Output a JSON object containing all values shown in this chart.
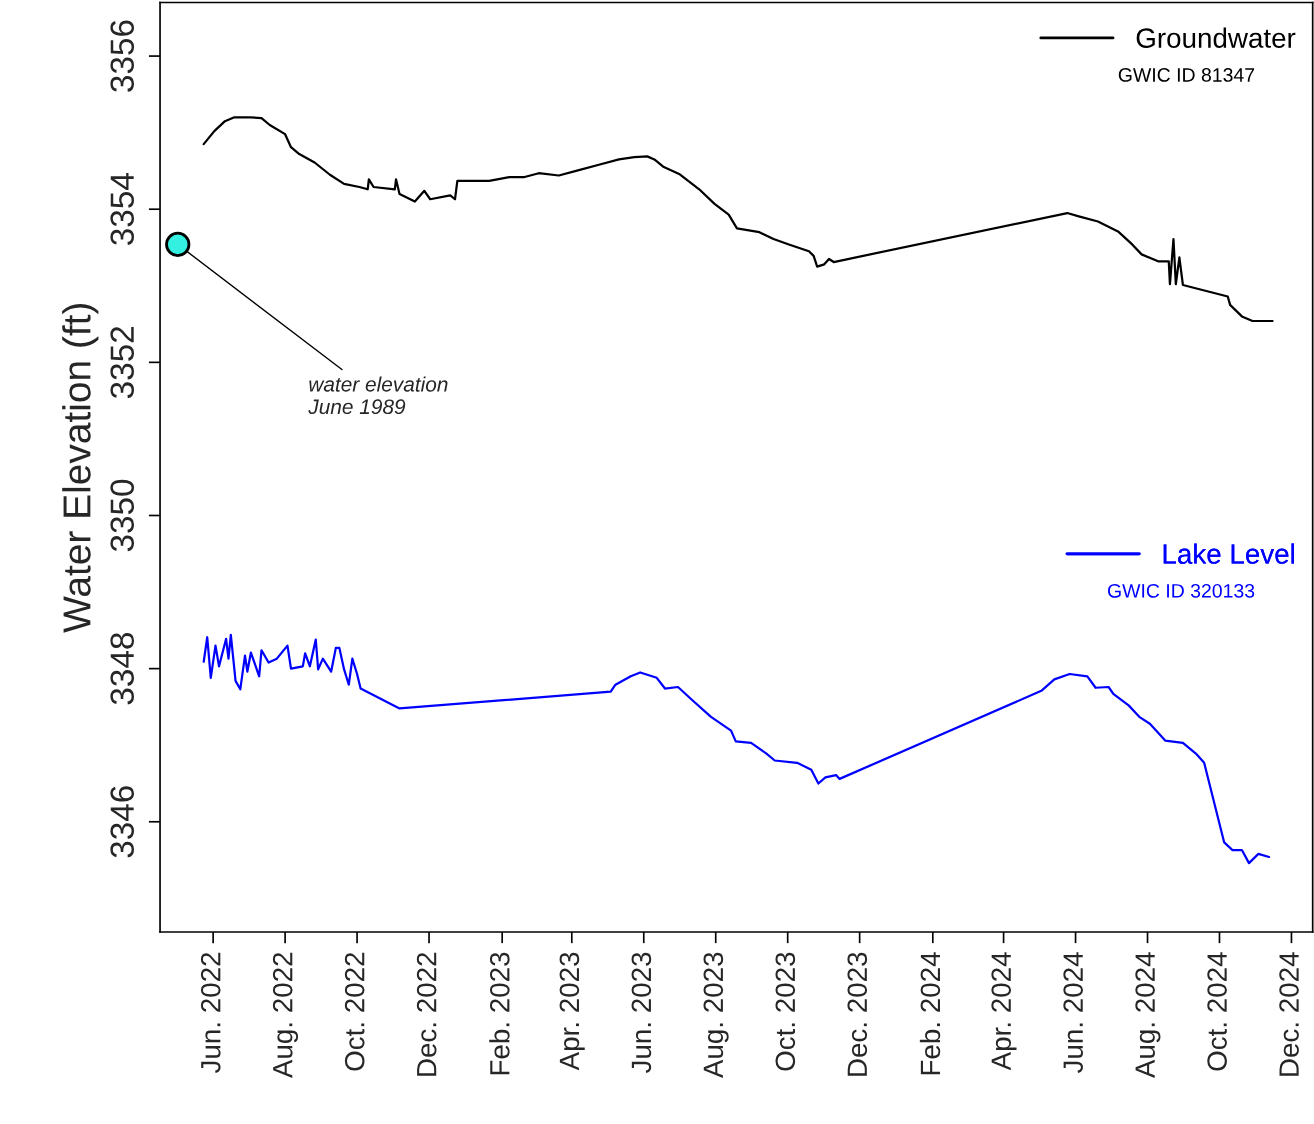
{
  "chart_data": {
    "type": "line",
    "ylabel": "Water Elevation (ft)",
    "xlim": [
      "2022-04-17",
      "2024-12-19"
    ],
    "ylim": [
      3344.56,
      3356.7
    ],
    "yticks": [
      3346,
      3348,
      3350,
      3352,
      3354,
      3356
    ],
    "xticks": [
      {
        "value": "2022-06-01",
        "label": "Jun. 2022"
      },
      {
        "value": "2022-08-01",
        "label": "Aug. 2022"
      },
      {
        "value": "2022-10-01",
        "label": "Oct. 2022"
      },
      {
        "value": "2022-12-01",
        "label": "Dec. 2022"
      },
      {
        "value": "2023-02-01",
        "label": "Feb. 2023"
      },
      {
        "value": "2023-04-01",
        "label": "Apr. 2023"
      },
      {
        "value": "2023-06-01",
        "label": "Jun. 2023"
      },
      {
        "value": "2023-08-01",
        "label": "Aug. 2023"
      },
      {
        "value": "2023-10-01",
        "label": "Oct. 2023"
      },
      {
        "value": "2023-12-01",
        "label": "Dec. 2023"
      },
      {
        "value": "2024-02-01",
        "label": "Feb. 2024"
      },
      {
        "value": "2024-04-01",
        "label": "Apr. 2024"
      },
      {
        "value": "2024-06-01",
        "label": "Jun. 2024"
      },
      {
        "value": "2024-08-01",
        "label": "Aug. 2024"
      },
      {
        "value": "2024-10-01",
        "label": "Oct. 2024"
      },
      {
        "value": "2024-12-01",
        "label": "Dec. 2024"
      }
    ],
    "grid": false,
    "legend": "right",
    "series": [
      {
        "name": "Groundwater",
        "color": "#000000",
        "x": [
          "2022-05-24",
          "2022-06-02",
          "2022-06-11",
          "2022-06-19",
          "2022-07-02",
          "2022-07-12",
          "2022-07-19",
          "2022-08-01",
          "2022-08-06",
          "2022-08-13",
          "2022-08-26",
          "2022-09-08",
          "2022-09-20",
          "2022-10-03",
          "2022-10-10",
          "2022-10-11",
          "2022-10-15",
          "2022-11-02",
          "2022-11-03",
          "2022-11-06",
          "2022-11-19",
          "2022-11-27",
          "2022-12-02",
          "2022-12-19",
          "2022-12-23",
          "2022-12-25",
          "2023-01-21",
          "2023-02-07",
          "2023-02-20",
          "2023-03-04",
          "2023-03-21",
          "2023-04-07",
          "2023-04-24",
          "2023-05-11",
          "2023-05-24",
          "2023-06-04",
          "2023-06-10",
          "2023-06-18",
          "2023-07-01",
          "2023-07-18",
          "2023-07-31",
          "2023-08-12",
          "2023-08-19",
          "2023-09-07",
          "2023-09-19",
          "2023-10-02",
          "2023-10-19",
          "2023-10-23",
          "2023-10-26",
          "2023-11-01",
          "2023-11-05",
          "2023-11-09",
          "2024-05-25",
          "2024-06-03",
          "2024-06-20",
          "2024-07-07",
          "2024-07-19",
          "2024-07-27",
          "2024-08-10",
          "2024-08-19",
          "2024-08-20",
          "2024-08-23",
          "2024-08-25",
          "2024-08-28",
          "2024-08-31",
          "2024-10-08",
          "2024-10-10",
          "2024-10-20",
          "2024-10-29",
          "2024-11-15"
        ],
        "values": [
          3354.85,
          3355.02,
          3355.15,
          3355.2,
          3355.2,
          3355.19,
          3355.1,
          3354.98,
          3354.81,
          3354.72,
          3354.61,
          3354.45,
          3354.33,
          3354.29,
          3354.26,
          3354.39,
          3354.29,
          3354.26,
          3354.39,
          3354.2,
          3354.1,
          3354.24,
          3354.13,
          3354.18,
          3354.13,
          3354.37,
          3354.37,
          3354.42,
          3354.42,
          3354.47,
          3354.44,
          3354.51,
          3354.58,
          3354.65,
          3354.68,
          3354.69,
          3354.65,
          3354.55,
          3354.46,
          3354.26,
          3354.07,
          3353.93,
          3353.75,
          3353.7,
          3353.61,
          3353.54,
          3353.45,
          3353.39,
          3353.25,
          3353.28,
          3353.35,
          3353.31,
          3353.95,
          3353.91,
          3353.84,
          3353.71,
          3353.54,
          3353.41,
          3353.32,
          3353.32,
          3353.02,
          3353.61,
          3353.02,
          3353.37,
          3353.01,
          3352.86,
          3352.75,
          3352.6,
          3352.54,
          3352.54
        ]
      },
      {
        "name": "Lake Level",
        "color": "#0000ff",
        "x": [
          "2022-05-24",
          "2022-05-27",
          "2022-05-30",
          "2022-06-03",
          "2022-06-06",
          "2022-06-12",
          "2022-06-14",
          "2022-06-16",
          "2022-06-20",
          "2022-06-24",
          "2022-06-28",
          "2022-06-30",
          "2022-07-03",
          "2022-07-10",
          "2022-07-12",
          "2022-07-18",
          "2022-07-25",
          "2022-08-03",
          "2022-08-06",
          "2022-08-16",
          "2022-08-18",
          "2022-08-22",
          "2022-08-27",
          "2022-08-29",
          "2022-09-02",
          "2022-09-09",
          "2022-09-13",
          "2022-09-16",
          "2022-09-20",
          "2022-09-24",
          "2022-09-27",
          "2022-10-01",
          "2022-10-04",
          "2022-11-06",
          "2023-05-04",
          "2023-05-08",
          "2023-05-21",
          "2023-05-29",
          "2023-06-12",
          "2023-06-19",
          "2023-06-30",
          "2023-07-12",
          "2023-07-28",
          "2023-08-14",
          "2023-08-18",
          "2023-08-31",
          "2023-09-13",
          "2023-09-20",
          "2023-10-09",
          "2023-10-21",
          "2023-10-27",
          "2023-11-02",
          "2023-11-11",
          "2023-11-14",
          "2024-05-03",
          "2024-05-14",
          "2024-05-27",
          "2024-06-11",
          "2024-06-18",
          "2024-06-29",
          "2024-07-03",
          "2024-07-16",
          "2024-07-25",
          "2024-08-03",
          "2024-08-16",
          "2024-08-31",
          "2024-09-11",
          "2024-09-18",
          "2024-10-05",
          "2024-10-12",
          "2024-10-20",
          "2024-10-26",
          "2024-11-03",
          "2024-11-12"
        ],
        "values": [
          3348.09,
          3348.41,
          3347.88,
          3348.3,
          3348.03,
          3348.39,
          3348.13,
          3348.44,
          3347.84,
          3347.73,
          3348.17,
          3347.96,
          3348.21,
          3347.9,
          3348.24,
          3348.08,
          3348.13,
          3348.3,
          3348.0,
          3348.03,
          3348.2,
          3348.03,
          3348.38,
          3347.99,
          3348.13,
          3347.96,
          3348.27,
          3348.27,
          3347.99,
          3347.79,
          3348.13,
          3347.93,
          3347.74,
          3347.48,
          3347.7,
          3347.79,
          3347.9,
          3347.95,
          3347.88,
          3347.74,
          3347.76,
          3347.59,
          3347.37,
          3347.19,
          3347.05,
          3347.03,
          3346.89,
          3346.8,
          3346.77,
          3346.68,
          3346.5,
          3346.58,
          3346.61,
          3346.56,
          3347.71,
          3347.86,
          3347.93,
          3347.9,
          3347.75,
          3347.76,
          3347.67,
          3347.52,
          3347.37,
          3347.28,
          3347.06,
          3347.03,
          3346.89,
          3346.77,
          3345.73,
          3345.63,
          3345.63,
          3345.46,
          3345.58,
          3345.54
        ]
      },
      {
        "type": "scatter",
        "color": "#33f0e0",
        "marker": "circle",
        "x": [
          "2022-05-02"
        ],
        "values": [
          3353.54
        ]
      }
    ],
    "annotations": [
      "GWIC ID 81347",
      "GWIC ID 320133",
      {
        "text": "water elevation\nJune 1989",
        "x": "2022-05-02",
        "y": 3353.54
      }
    ]
  }
}
